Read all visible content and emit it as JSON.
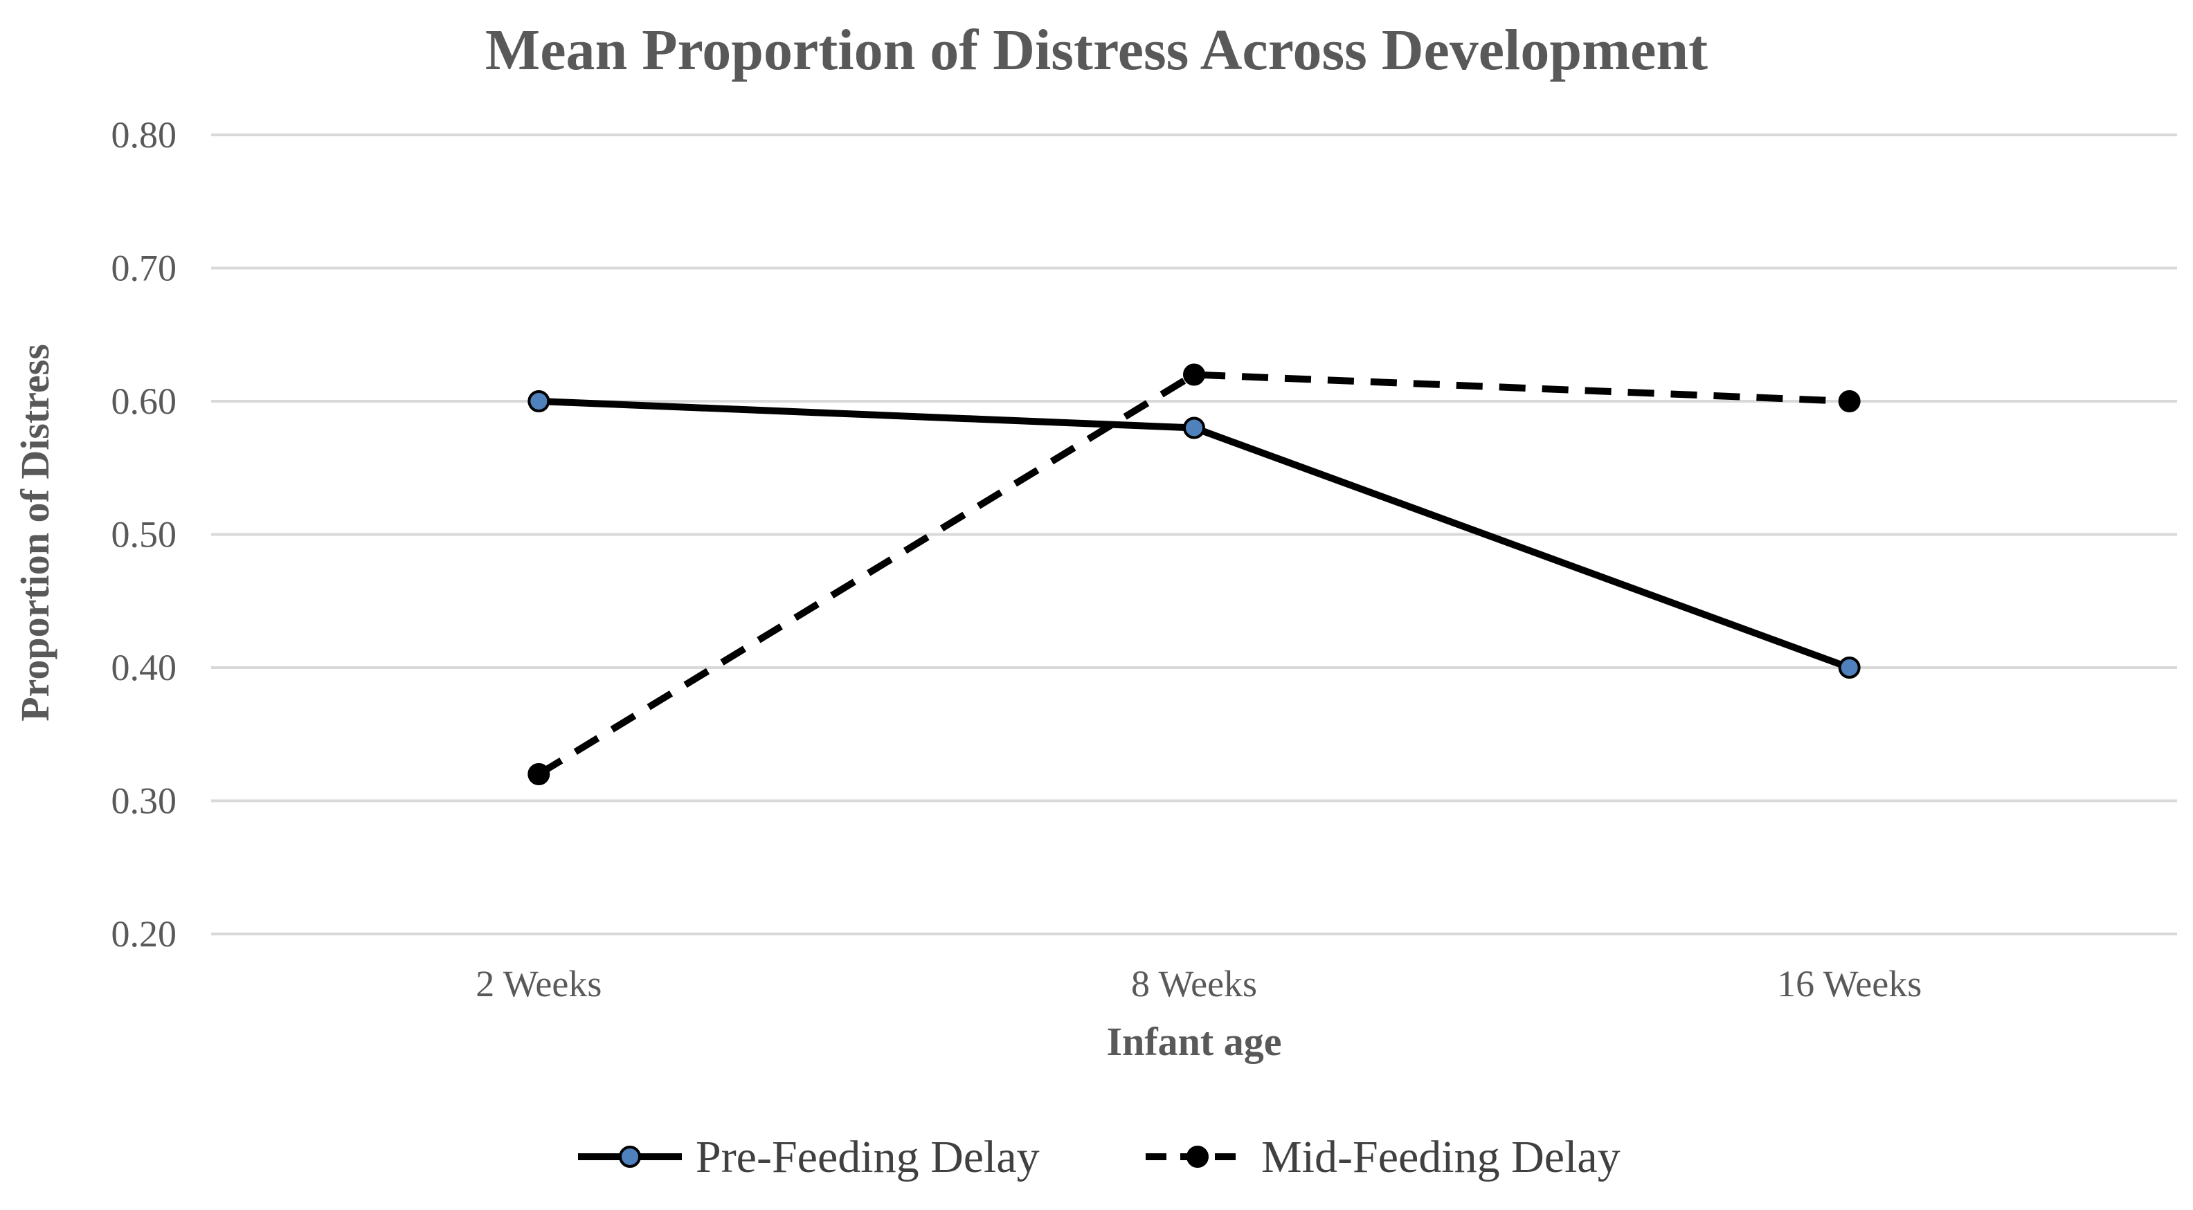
{
  "chart_data": {
    "type": "line",
    "title": "Mean Proportion of Distress Across Development",
    "xlabel": "Infant age",
    "ylabel": "Proportion of Distress",
    "categories": [
      "2 Weeks",
      "8 Weeks",
      "16 Weeks"
    ],
    "ylim": [
      0.2,
      0.8
    ],
    "yticks": [
      "0.20",
      "0.30",
      "0.40",
      "0.50",
      "0.60",
      "0.70",
      "0.80"
    ],
    "grid": true,
    "legend_position": "bottom",
    "series": [
      {
        "name": "Pre-Feeding Delay",
        "values": [
          0.6,
          0.58,
          0.4
        ],
        "line_style": "solid",
        "line_color": "#000000",
        "marker_color": "#4f81bd"
      },
      {
        "name": "Mid-Feeding Delay",
        "values": [
          0.32,
          0.62,
          0.6
        ],
        "line_style": "dashed",
        "line_color": "#000000",
        "marker_color": "#000000"
      }
    ]
  }
}
